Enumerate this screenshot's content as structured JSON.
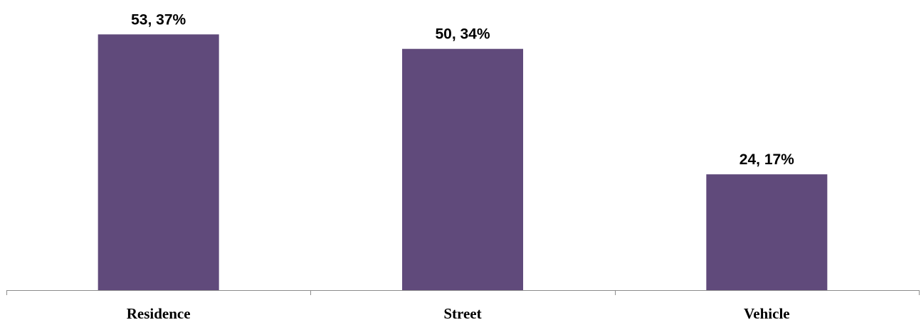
{
  "chart_data": {
    "type": "bar",
    "categories": [
      "Residence",
      "Street",
      "Vehicle"
    ],
    "values": [
      53,
      50,
      24
    ],
    "data_labels": [
      "53, 37%",
      "50, 34%",
      "24, 17%"
    ],
    "title": "",
    "xlabel": "",
    "ylabel": "",
    "ylim": [
      0,
      56
    ],
    "grid": false,
    "legend": "none",
    "bar_color": "#604a7b"
  }
}
